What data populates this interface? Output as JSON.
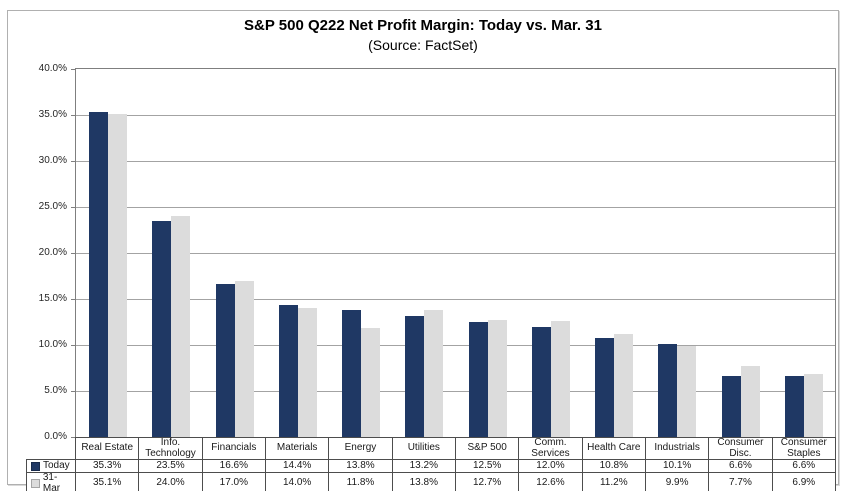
{
  "title": "S&P 500 Q222 Net Profit Margin: Today vs. Mar. 31",
  "subtitle": "(Source: FactSet)",
  "chart_data": {
    "type": "bar",
    "categories": [
      "Real Estate",
      "Info. Technology",
      "Financials",
      "Materials",
      "Energy",
      "Utilities",
      "S&P 500",
      "Comm. Services",
      "Health Care",
      "Industrials",
      "Consumer Disc.",
      "Consumer Staples"
    ],
    "series": [
      {
        "name": "Today",
        "color": "#1f3864",
        "values": [
          35.3,
          23.5,
          16.6,
          14.4,
          13.8,
          13.2,
          12.5,
          12.0,
          10.8,
          10.1,
          6.6,
          6.6
        ]
      },
      {
        "name": "31-Mar",
        "color": "#dcdcdc",
        "values": [
          35.1,
          24.0,
          17.0,
          14.0,
          11.8,
          13.8,
          12.7,
          12.6,
          11.2,
          9.9,
          7.7,
          6.9
        ]
      }
    ],
    "title": "S&P 500 Q222 Net Profit Margin: Today vs. Mar. 31",
    "subtitle": "(Source: FactSet)",
    "xlabel": "",
    "ylabel": "",
    "ylim": [
      0,
      40
    ],
    "ytick_step": 5,
    "yticks": [
      "40.0%",
      "35.0%",
      "30.0%",
      "25.0%",
      "20.0%",
      "15.0%",
      "10.0%",
      "5.0%",
      "0.0%"
    ],
    "grid": true,
    "value_suffix": "%",
    "legend_position": "bottom-left-table"
  }
}
